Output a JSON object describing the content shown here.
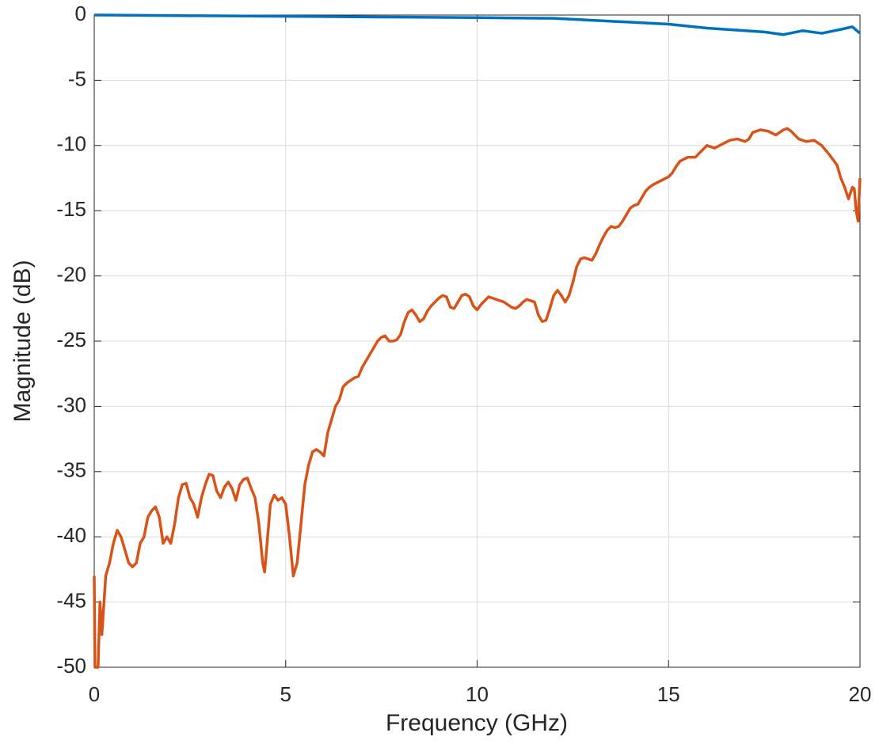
{
  "chart_data": {
    "type": "line",
    "xlabel": "Frequency (GHz)",
    "ylabel": "Magnitude (dB)",
    "xlim": [
      0,
      20
    ],
    "ylim": [
      -50,
      0
    ],
    "xticks": [
      0,
      5,
      10,
      15,
      20
    ],
    "yticks": [
      -50,
      -45,
      -40,
      -35,
      -30,
      -25,
      -20,
      -15,
      -10,
      -5,
      0
    ],
    "grid": true,
    "series": [
      {
        "color": "#0072bd",
        "x": [
          0,
          2.5,
          5,
          7.5,
          10,
          12,
          13,
          14,
          15,
          15.5,
          16,
          16.5,
          17,
          17.5,
          18,
          18.5,
          19,
          19.5,
          19.8,
          20
        ],
        "values": [
          0,
          -0.05,
          -0.1,
          -0.15,
          -0.2,
          -0.25,
          -0.4,
          -0.55,
          -0.7,
          -0.85,
          -1.0,
          -1.1,
          -1.2,
          -1.3,
          -1.5,
          -1.2,
          -1.4,
          -1.1,
          -0.9,
          -1.4
        ]
      },
      {
        "color": "#d95319",
        "x": [
          0,
          0.02,
          0.1,
          0.15,
          0.2,
          0.3,
          0.4,
          0.5,
          0.6,
          0.7,
          0.8,
          0.9,
          1.0,
          1.1,
          1.2,
          1.3,
          1.4,
          1.5,
          1.6,
          1.7,
          1.8,
          1.9,
          2.0,
          2.1,
          2.2,
          2.3,
          2.4,
          2.5,
          2.6,
          2.7,
          2.8,
          2.9,
          3.0,
          3.1,
          3.2,
          3.3,
          3.4,
          3.5,
          3.6,
          3.7,
          3.8,
          3.9,
          4.0,
          4.1,
          4.2,
          4.3,
          4.4,
          4.45,
          4.5,
          4.6,
          4.7,
          4.8,
          4.9,
          5.0,
          5.1,
          5.2,
          5.3,
          5.4,
          5.5,
          5.6,
          5.7,
          5.8,
          5.9,
          6.0,
          6.1,
          6.2,
          6.3,
          6.4,
          6.5,
          6.6,
          6.7,
          6.8,
          6.9,
          7.0,
          7.1,
          7.2,
          7.3,
          7.4,
          7.5,
          7.6,
          7.7,
          7.8,
          7.9,
          8.0,
          8.1,
          8.2,
          8.3,
          8.4,
          8.5,
          8.6,
          8.7,
          8.8,
          8.9,
          9.0,
          9.1,
          9.2,
          9.3,
          9.4,
          9.5,
          9.6,
          9.7,
          9.8,
          9.9,
          10.0,
          10.1,
          10.2,
          10.3,
          10.5,
          10.7,
          10.9,
          11.0,
          11.1,
          11.2,
          11.3,
          11.5,
          11.6,
          11.7,
          11.8,
          11.9,
          12.0,
          12.1,
          12.2,
          12.3,
          12.4,
          12.5,
          12.6,
          12.7,
          12.8,
          12.9,
          13.0,
          13.1,
          13.2,
          13.3,
          13.4,
          13.5,
          13.6,
          13.7,
          13.8,
          13.9,
          14.0,
          14.1,
          14.2,
          14.3,
          14.4,
          14.5,
          14.6,
          14.8,
          15.0,
          15.1,
          15.2,
          15.3,
          15.5,
          15.7,
          15.8,
          15.9,
          16.0,
          16.2,
          16.4,
          16.6,
          16.8,
          17.0,
          17.1,
          17.2,
          17.4,
          17.6,
          17.8,
          18.0,
          18.1,
          18.2,
          18.4,
          18.6,
          18.8,
          19.0,
          19.2,
          19.4,
          19.5,
          19.6,
          19.7,
          19.8,
          19.85,
          19.9,
          19.95,
          20.0
        ],
        "values": [
          -43,
          -50,
          -50,
          -45,
          -47.5,
          -43,
          -42,
          -40.5,
          -39.5,
          -40,
          -41,
          -42,
          -42.3,
          -42,
          -40.5,
          -40,
          -38.5,
          -38,
          -37.7,
          -38.5,
          -40.5,
          -40,
          -40.5,
          -39,
          -37,
          -36,
          -35.9,
          -37,
          -37.5,
          -38.5,
          -37,
          -36,
          -35.2,
          -35.3,
          -36.5,
          -37,
          -36.2,
          -35.8,
          -36.3,
          -37.2,
          -36,
          -35.6,
          -35.5,
          -36.3,
          -37,
          -39,
          -42,
          -42.7,
          -41,
          -37.5,
          -36.8,
          -37.2,
          -37,
          -37.5,
          -40,
          -43,
          -42,
          -39,
          -36,
          -34.5,
          -33.5,
          -33.3,
          -33.5,
          -33.8,
          -32,
          -31,
          -30,
          -29.5,
          -28.5,
          -28.2,
          -28.0,
          -27.8,
          -27.7,
          -27,
          -26.5,
          -26,
          -25.5,
          -25,
          -24.7,
          -24.6,
          -25,
          -25,
          -24.9,
          -24.5,
          -23.5,
          -22.8,
          -22.6,
          -23,
          -23.5,
          -23.3,
          -22.7,
          -22.3,
          -22.0,
          -21.7,
          -21.5,
          -21.6,
          -22.4,
          -22.5,
          -22.0,
          -21.5,
          -21.4,
          -21.6,
          -22.3,
          -22.6,
          -22.2,
          -21.9,
          -21.6,
          -21.8,
          -22.0,
          -22.4,
          -22.5,
          -22.3,
          -22.0,
          -21.8,
          -22.0,
          -23.0,
          -23.5,
          -23.4,
          -22.5,
          -21.5,
          -21.1,
          -21.5,
          -22.0,
          -21.5,
          -20.5,
          -19.3,
          -18.7,
          -18.6,
          -18.7,
          -18.8,
          -18.3,
          -17.6,
          -17.0,
          -16.5,
          -16.2,
          -16.3,
          -16.2,
          -15.8,
          -15.3,
          -14.8,
          -14.6,
          -14.5,
          -14.0,
          -13.5,
          -13.2,
          -13.0,
          -12.7,
          -12.4,
          -12.1,
          -11.6,
          -11.2,
          -10.9,
          -10.9,
          -10.6,
          -10.3,
          -10.0,
          -10.2,
          -9.9,
          -9.6,
          -9.5,
          -9.7,
          -9.5,
          -9.0,
          -8.8,
          -8.9,
          -9.2,
          -8.8,
          -8.7,
          -8.9,
          -9.5,
          -9.7,
          -9.6,
          -10.0,
          -10.7,
          -11.5,
          -12.5,
          -13.2,
          -14.1,
          -13.2,
          -13.3,
          -15.0,
          -15.8,
          -12.5
        ]
      }
    ]
  }
}
